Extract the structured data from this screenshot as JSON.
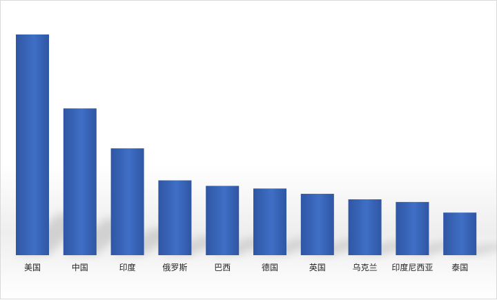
{
  "chart_data": {
    "type": "bar",
    "categories": [
      "美国",
      "中国",
      "印度",
      "俄罗斯",
      "巴西",
      "德国",
      "英国",
      "乌克兰",
      "印度尼西亚",
      "泰国"
    ],
    "values": [
      100,
      66.5,
      48.4,
      33.9,
      31.4,
      30.2,
      27.8,
      25.3,
      24.1,
      19.3
    ],
    "title": "",
    "xlabel": "",
    "ylabel": "",
    "ylim": [
      0,
      100
    ],
    "grid": false,
    "legend": "none",
    "bar_color": "#3f6fc6",
    "bar_color_dark": "#2f56a3"
  }
}
